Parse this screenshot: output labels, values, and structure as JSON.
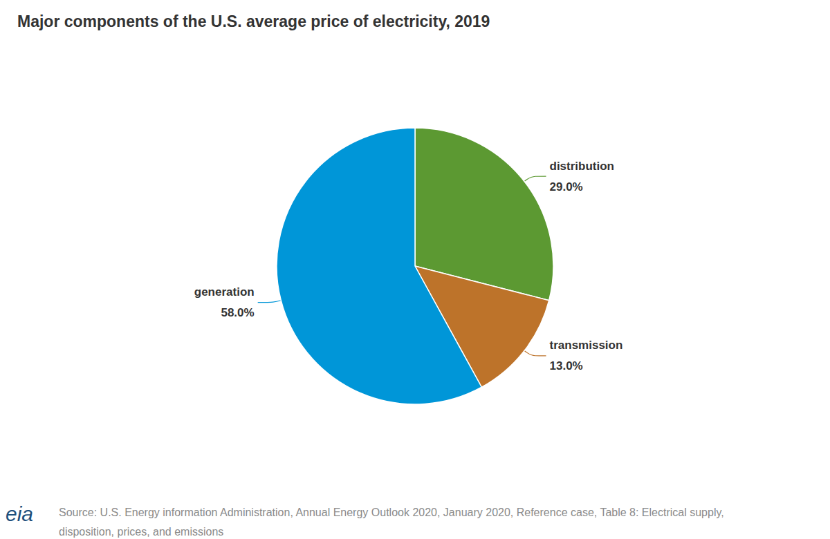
{
  "chart_data": {
    "type": "pie",
    "title": "Major components of the U.S. average price of electricity, 2019",
    "categories": [
      "distribution",
      "transmission",
      "generation"
    ],
    "values": [
      29.0,
      13.0,
      58.0
    ],
    "value_labels": [
      "29.0%",
      "13.0%",
      "58.0%"
    ],
    "colors": [
      "#5c9932",
      "#bd732a",
      "#0096d8"
    ],
    "data_labels": true,
    "legend": "none",
    "source": "Source: U.S. Energy information Administration, Annual Energy Outlook 2020, January 2020, Reference case, Table 8: Electrical supply, disposition, prices, and emissions",
    "logo": "eia"
  }
}
